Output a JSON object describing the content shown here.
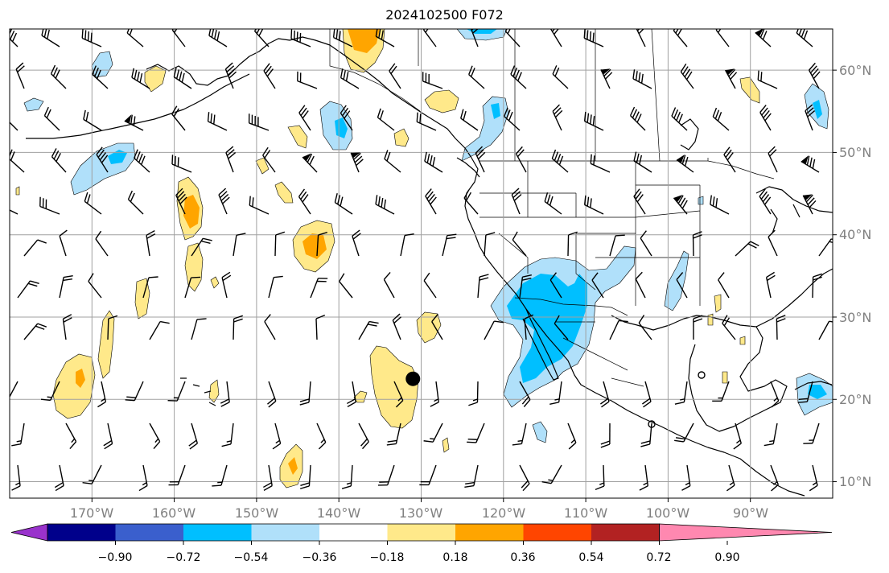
{
  "title": "2024102500 F072",
  "map": {
    "lon_range": [
      -180,
      -80
    ],
    "lat_range": [
      8,
      65
    ],
    "lon_ticks": [
      "170°W",
      "160°W",
      "150°W",
      "140°W",
      "130°W",
      "120°W",
      "110°W",
      "100°W",
      "90°W"
    ],
    "lat_ticks": [
      "60°N",
      "50°N",
      "40°N",
      "30°N",
      "20°N",
      "10°N"
    ],
    "grid": true,
    "grid_color": "#a0a0a0",
    "tick_color": "#808080",
    "marker": {
      "lon": -131,
      "lat": 22.5
    }
  },
  "colorbar": {
    "colors": [
      "#9932cc",
      "#00008b",
      "#3a5fcd",
      "#00bfff",
      "#b0e0fa",
      "#ffffff",
      "#ffe98a",
      "#ffa500",
      "#ff4500",
      "#b22222",
      "#ff88b0"
    ],
    "tick_labels": [
      "−0.90",
      "−0.72",
      "−0.54",
      "−0.36",
      "−0.18",
      "0.18",
      "0.36",
      "0.54",
      "0.72",
      "0.90"
    ],
    "extend": "both"
  }
}
